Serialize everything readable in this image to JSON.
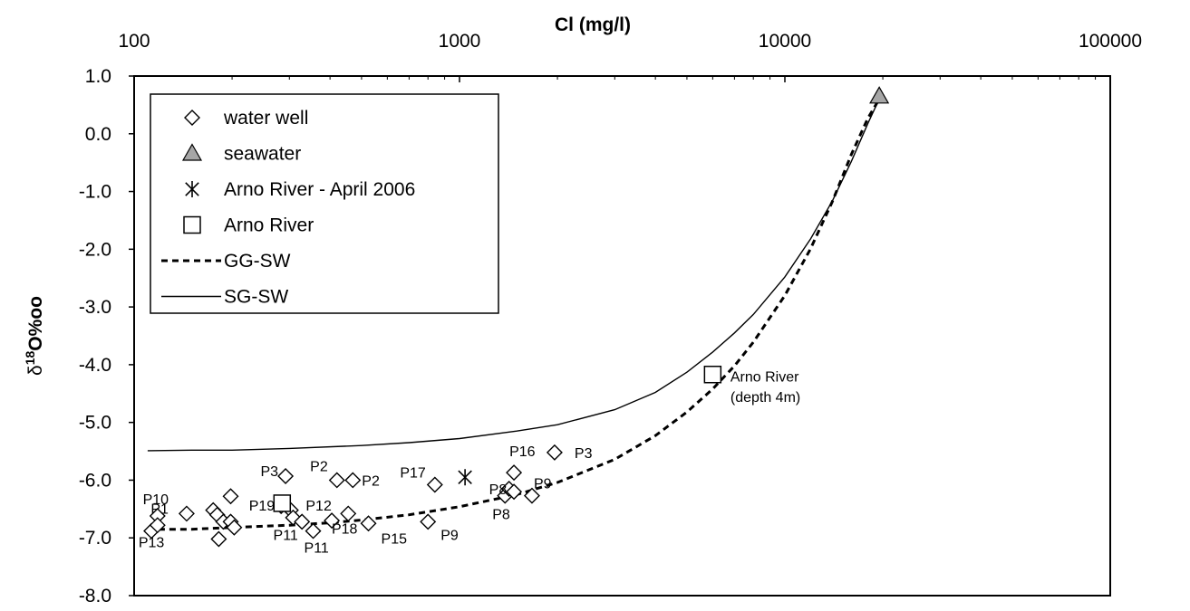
{
  "chart_data": {
    "type": "scatter",
    "title": "",
    "xlabel": "Cl (mg/l)",
    "ylabel": {
      "delta": "δ",
      "sup": "18",
      "rest": "O%oo"
    },
    "x_scale": "log",
    "xlim": [
      100,
      100000
    ],
    "ylim": [
      -8.0,
      1.0
    ],
    "x_ticks": [
      "100",
      "1000",
      "10000",
      "100000"
    ],
    "y_ticks": [
      "1.0",
      "0.0",
      "-1.0",
      "-2.0",
      "-3.0",
      "-4.0",
      "-5.0",
      "-6.0",
      "-7.0",
      "-8.0"
    ],
    "grid": false,
    "legend_position": "top-left",
    "series": [
      {
        "name": "water well",
        "marker": "diamond",
        "points": [
          {
            "x": 113,
            "y": -6.88,
            "label": "P13"
          },
          {
            "x": 118,
            "y": -6.62,
            "label": "P10"
          },
          {
            "x": 118,
            "y": -6.78,
            "label": ""
          },
          {
            "x": 145,
            "y": -6.58,
            "label": "P1"
          },
          {
            "x": 175,
            "y": -6.52,
            "label": ""
          },
          {
            "x": 180,
            "y": -6.6,
            "label": ""
          },
          {
            "x": 182,
            "y": -7.02,
            "label": ""
          },
          {
            "x": 188,
            "y": -6.72,
            "label": ""
          },
          {
            "x": 198,
            "y": -6.28,
            "label": ""
          },
          {
            "x": 198,
            "y": -6.72,
            "label": ""
          },
          {
            "x": 203,
            "y": -6.82,
            "label": ""
          },
          {
            "x": 283,
            "y": -6.45,
            "label": "P19"
          },
          {
            "x": 292,
            "y": -5.93,
            "label": "P3"
          },
          {
            "x": 303,
            "y": -6.52,
            "label": ""
          },
          {
            "x": 308,
            "y": -6.65,
            "label": "P12"
          },
          {
            "x": 328,
            "y": -6.72,
            "label": "P11"
          },
          {
            "x": 355,
            "y": -6.88,
            "label": "P11"
          },
          {
            "x": 405,
            "y": -6.7,
            "label": ""
          },
          {
            "x": 420,
            "y": -6.0,
            "label": "P2"
          },
          {
            "x": 455,
            "y": -6.58,
            "label": "P18"
          },
          {
            "x": 470,
            "y": -6.0,
            "label": "P2"
          },
          {
            "x": 525,
            "y": -6.75,
            "label": "P15"
          },
          {
            "x": 800,
            "y": -6.72,
            "label": "P9"
          },
          {
            "x": 840,
            "y": -6.08,
            "label": "P17"
          },
          {
            "x": 1380,
            "y": -6.27,
            "label": "P8"
          },
          {
            "x": 1420,
            "y": -6.15,
            "label": "P8"
          },
          {
            "x": 1470,
            "y": -5.87,
            "label": "P16"
          },
          {
            "x": 1470,
            "y": -6.2,
            "label": ""
          },
          {
            "x": 1670,
            "y": -6.27,
            "label": "P9"
          },
          {
            "x": 1960,
            "y": -5.52,
            "label": "P3"
          }
        ]
      },
      {
        "name": "seawater",
        "marker": "triangle",
        "color": "#a6a6a6",
        "points": [
          {
            "x": 19500,
            "y": 0.65
          }
        ]
      },
      {
        "name": "Arno River - April 2006",
        "marker": "asterisk",
        "points": [
          {
            "x": 1040,
            "y": -5.95
          }
        ]
      },
      {
        "name": "Arno River",
        "marker": "square",
        "points": [
          {
            "x": 285,
            "y": -6.4,
            "label": ""
          },
          {
            "x": 6000,
            "y": -4.17,
            "label": ""
          }
        ]
      },
      {
        "name": "GG-SW",
        "style": "dashed",
        "line": [
          {
            "x": 110,
            "y": -6.85
          },
          {
            "x": 150,
            "y": -6.85
          },
          {
            "x": 200,
            "y": -6.82
          },
          {
            "x": 300,
            "y": -6.78
          },
          {
            "x": 400,
            "y": -6.74
          },
          {
            "x": 500,
            "y": -6.69
          },
          {
            "x": 700,
            "y": -6.6
          },
          {
            "x": 1000,
            "y": -6.46
          },
          {
            "x": 1500,
            "y": -6.25
          },
          {
            "x": 2000,
            "y": -6.04
          },
          {
            "x": 3000,
            "y": -5.64
          },
          {
            "x": 4000,
            "y": -5.23
          },
          {
            "x": 5000,
            "y": -4.82
          },
          {
            "x": 6000,
            "y": -4.42
          },
          {
            "x": 7000,
            "y": -4.02
          },
          {
            "x": 8000,
            "y": -3.61
          },
          {
            "x": 10000,
            "y": -2.8
          },
          {
            "x": 12000,
            "y": -1.99
          },
          {
            "x": 14000,
            "y": -1.17
          },
          {
            "x": 16000,
            "y": -0.36
          },
          {
            "x": 18000,
            "y": 0.27
          },
          {
            "x": 19500,
            "y": 0.6
          }
        ]
      },
      {
        "name": "SG-SW",
        "style": "solid",
        "line": [
          {
            "x": 110,
            "y": -5.49
          },
          {
            "x": 150,
            "y": -5.48
          },
          {
            "x": 200,
            "y": -5.48
          },
          {
            "x": 300,
            "y": -5.45
          },
          {
            "x": 500,
            "y": -5.4
          },
          {
            "x": 700,
            "y": -5.35
          },
          {
            "x": 1000,
            "y": -5.28
          },
          {
            "x": 1500,
            "y": -5.15
          },
          {
            "x": 2000,
            "y": -5.04
          },
          {
            "x": 3000,
            "y": -4.78
          },
          {
            "x": 4000,
            "y": -4.48
          },
          {
            "x": 5000,
            "y": -4.13
          },
          {
            "x": 6000,
            "y": -3.78
          },
          {
            "x": 7000,
            "y": -3.45
          },
          {
            "x": 8000,
            "y": -3.13
          },
          {
            "x": 10000,
            "y": -2.48
          },
          {
            "x": 12000,
            "y": -1.82
          },
          {
            "x": 14000,
            "y": -1.16
          },
          {
            "x": 16000,
            "y": -0.48
          },
          {
            "x": 18000,
            "y": 0.18
          },
          {
            "x": 19500,
            "y": 0.6
          }
        ]
      }
    ],
    "annotations": [
      {
        "text": "Arno River",
        "x": 6800,
        "y": -4.2
      },
      {
        "text": "(depth 4m)",
        "x": 6800,
        "y": -4.55
      }
    ]
  }
}
